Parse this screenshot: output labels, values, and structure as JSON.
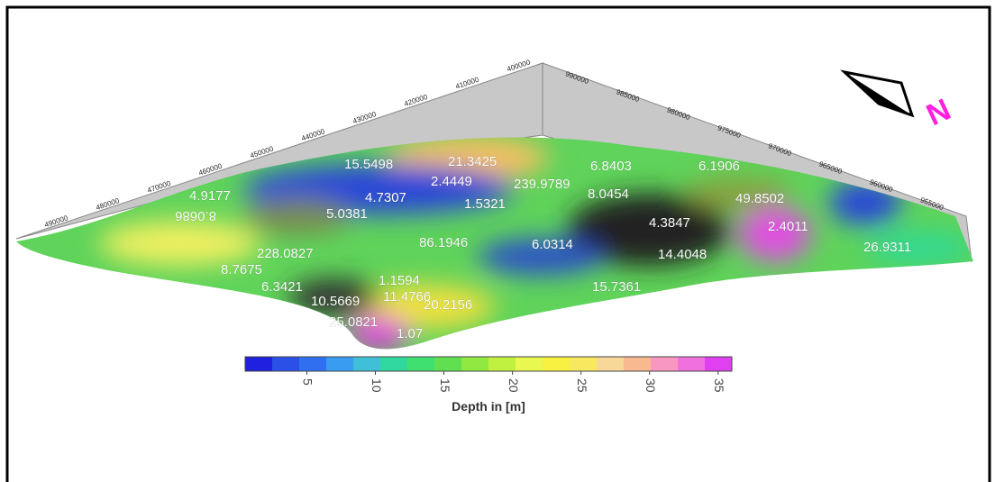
{
  "map": {
    "left_axis_labels": [
      "400000",
      "410000",
      "420000",
      "430000",
      "440000",
      "450000",
      "460000",
      "470000",
      "480000",
      "490000"
    ],
    "right_axis_labels": [
      "990000",
      "985000",
      "980000",
      "975000",
      "970000",
      "965000",
      "960000",
      "955000"
    ],
    "north_label": "N",
    "point_labels": [
      "15.5498",
      "21.3425",
      "6.8403",
      "6.1906",
      "2.4449",
      "239.9789",
      "4.9177",
      "4.7307",
      "8.0454",
      "49.8502",
      "8.0686",
      "5.0381",
      "1.5321",
      "4.3847",
      "2.4011",
      "228.0827",
      "86.1946",
      "6.0314",
      "14.4048",
      "26.9311",
      "8.7675",
      "6.3421",
      "1.1594",
      "11.4766",
      "15.7361",
      "10.5669",
      "20.2156",
      "25.0821",
      "1.07"
    ],
    "colorbar": {
      "title": "Depth in [m]",
      "lim": [
        0.5,
        36
      ],
      "ticks": [
        5,
        10,
        15,
        20,
        25,
        30,
        35
      ]
    }
  }
}
